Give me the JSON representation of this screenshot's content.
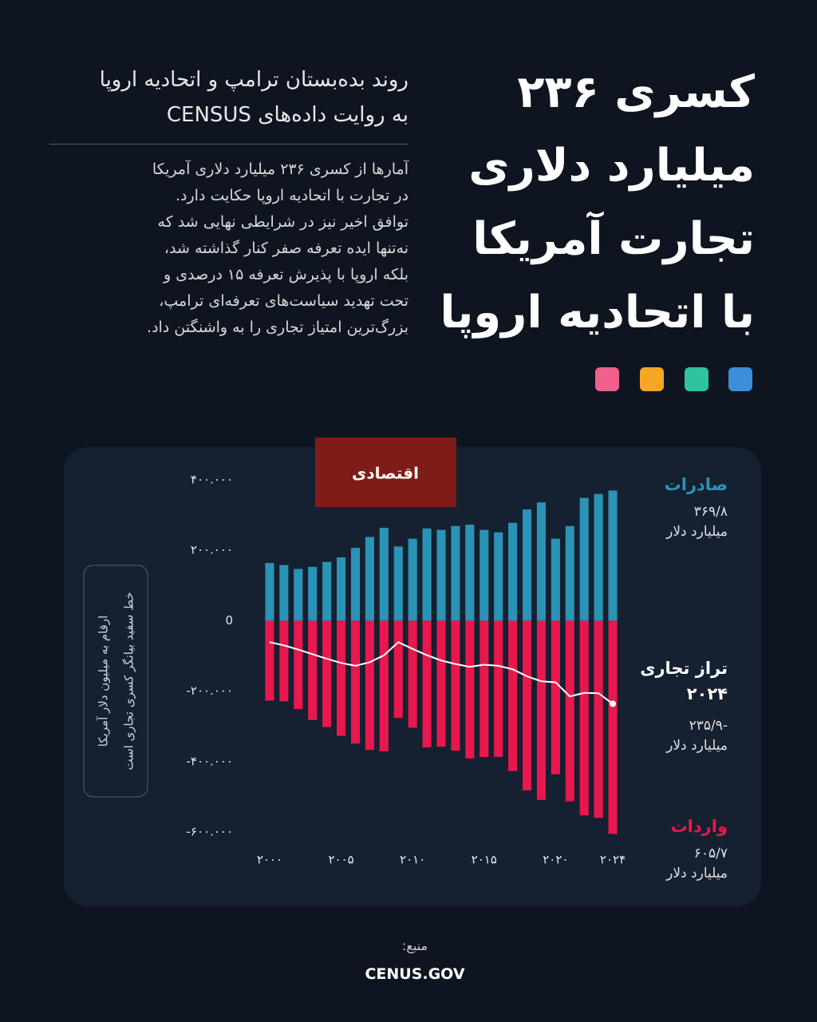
{
  "header": {
    "title": [
      "کسری ۲۳۶",
      "میلیارد دلاری",
      "تجارت آمریکا",
      "با اتحادیه اروپا"
    ],
    "subtitle": [
      "روند بده‌بستان ترامپ و اتحادیه اروپا",
      "به روایت داده‌های CENSUS"
    ],
    "body": [
      "آمارها از کسری ۲۳۶ میلیارد دلاری آمریکا",
      "در تجارت با اتحادیه اروپا حکایت دارد.",
      "توافق اخیر نیز در شرایطی نهایی شد که",
      "نه‌تنها ایده تعرفه صفر کنار گذاشته شد،",
      "بلکه اروپا با پذیرش تعرفه ۱۵ درصدی و",
      "تحت تهدید سیاست‌های تعرفه‌ای ترامپ،",
      "بزرگ‌ترین امتیاز تجاری را به واشنگتن داد."
    ]
  },
  "logo": "اقتصادی",
  "chart_data": {
    "type": "bar",
    "note": [
      "ارقام به میلیون دلار آمریکا",
      "خط سفید بیانگر کسری تجاری است"
    ],
    "x": [
      2000,
      2001,
      2002,
      2003,
      2004,
      2005,
      2006,
      2007,
      2008,
      2009,
      2010,
      2011,
      2012,
      2013,
      2014,
      2015,
      2016,
      2017,
      2018,
      2019,
      2020,
      2021,
      2022,
      2023,
      2024
    ],
    "xlim": [
      1999.5,
      2024.5
    ],
    "xticks": [
      {
        "value": 2000,
        "label": "۲۰۰۰"
      },
      {
        "value": 2005,
        "label": "۲۰۰۵"
      },
      {
        "value": 2010,
        "label": "۲۰۱۰"
      },
      {
        "value": 2015,
        "label": "۲۰۱۵"
      },
      {
        "value": 2020,
        "label": "۲۰۲۰"
      },
      {
        "value": 2024,
        "label": "۲۰۲۴"
      }
    ],
    "ylim": [
      -620000,
      420000
    ],
    "yticks": [
      {
        "value": 400000,
        "label": "۴۰۰.۰۰۰"
      },
      {
        "value": 200000,
        "label": "۲۰۰.۰۰۰"
      },
      0,
      {
        "value": -200000,
        "label": "-۲۰۰.۰۰۰"
      },
      {
        "value": -400000,
        "label": "-۴۰۰.۰۰۰"
      },
      {
        "value": -600000,
        "label": "-۶۰۰.۰۰۰"
      }
    ],
    "grid": false,
    "series": [
      {
        "name": "صادرات",
        "type": "bar",
        "color": "#2b93b5",
        "end_label": "۳۶۹/۸",
        "unit": "میلیارد دلار",
        "values": [
          164000,
          158000,
          147000,
          153000,
          167000,
          180000,
          207000,
          238000,
          264000,
          211000,
          233000,
          262000,
          258000,
          269000,
          273000,
          258000,
          251000,
          278000,
          316000,
          336000,
          233000,
          269000,
          349000,
          360000,
          369800
        ]
      },
      {
        "name": "واردات",
        "type": "bar",
        "color": "#e8174e",
        "end_label": "۶۰۵/۷",
        "unit": "میلیارد دلار",
        "values": [
          -227000,
          -229000,
          -251000,
          -282000,
          -302000,
          -327000,
          -349000,
          -367000,
          -371000,
          -276000,
          -304000,
          -360000,
          -358000,
          -369000,
          -391000,
          -387000,
          -387000,
          -427000,
          -482000,
          -509000,
          -436000,
          -513000,
          -553000,
          -560000,
          -605700
        ]
      },
      {
        "name": "تراز تجاری",
        "type": "line",
        "color": "#ffffff",
        "end_label": "-۲۳۵/۹",
        "unit": "میلیارد دلار",
        "values": [
          -61000,
          -70000,
          -82000,
          -95000,
          -108000,
          -120000,
          -128000,
          -118000,
          -98000,
          -61000,
          -80000,
          -98000,
          -113000,
          -123000,
          -131000,
          -125000,
          -128000,
          -138000,
          -158000,
          -172000,
          -175000,
          -215000,
          -205000,
          -206000,
          -235900
        ]
      }
    ]
  },
  "footer": {
    "source_label": "منبع:",
    "source": "CENUS.GOV"
  }
}
